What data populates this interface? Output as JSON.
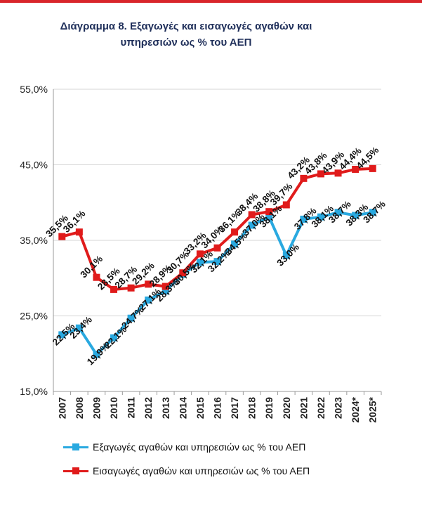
{
  "title_line1": "Διάγραμμα 8. Εξαγωγές και εισαγωγές αγαθών και",
  "title_line2": "υπηρεσιών ως % του ΑΕΠ",
  "colors": {
    "exports": "#29a9e0",
    "imports": "#e01b1b",
    "accent_rule": "#d9252b",
    "grid": "#d4d4d4"
  },
  "chart_data": {
    "type": "line",
    "title": "Διάγραμμα 8. Εξαγωγές και εισαγωγές αγαθών και υπηρεσιών ως % του ΑΕΠ",
    "x": [
      "2007",
      "2008",
      "2009",
      "2010",
      "2011",
      "2012",
      "2013",
      "2014",
      "2015",
      "2016",
      "2017",
      "2018",
      "2019",
      "2020",
      "2021",
      "2022",
      "2023",
      "2024*",
      "2025*"
    ],
    "ylim": [
      15,
      55
    ],
    "yticks": [
      "15,0%",
      "25,0%",
      "35,0%",
      "45,0%",
      "55,0%"
    ],
    "grid": true,
    "legend_position": "bottom",
    "series": [
      {
        "name": "Εξαγωγές αγαθών και υπηρεσιών ως % του ΑΕΠ",
        "values": [
          22.5,
          23.4,
          19.9,
          22.1,
          24.7,
          27.1,
          28.3,
          30.5,
          32.1,
          32.2,
          34.5,
          37.0,
          38.1,
          33.0,
          37.8,
          38.1,
          38.7,
          38.3,
          38.7
        ],
        "labels": [
          "22,5%",
          "23,4%",
          "19,9%",
          "22,1%",
          "24,7%",
          "27,1%",
          "28,3%",
          "30,5%",
          "32,1%",
          "32,2%",
          "34,5%",
          "37,0%",
          "38,1%",
          "33,0%",
          "37,8%",
          "38,1%",
          "38,7%",
          "38,3%",
          "38,7%"
        ]
      },
      {
        "name": "Εισαγωγές αγαθών και υπηρεσιών ως % του ΑΕΠ",
        "values": [
          35.5,
          36.1,
          30.1,
          28.5,
          28.7,
          29.2,
          28.9,
          30.7,
          33.2,
          34.0,
          36.1,
          38.4,
          38.8,
          39.7,
          43.2,
          43.8,
          43.9,
          44.4,
          44.5
        ],
        "labels": [
          "35,5%",
          "36,1%",
          "30,1%",
          "28,5%",
          "28,7%",
          "29,2%",
          "28,9%",
          "30,7%",
          "33,2%",
          "34,0%",
          "36,1%",
          "38,4%",
          "38,8%",
          "39,7%",
          "43,2%",
          "43,8%",
          "43,9%",
          "44,4%",
          "44,5%"
        ]
      }
    ]
  }
}
